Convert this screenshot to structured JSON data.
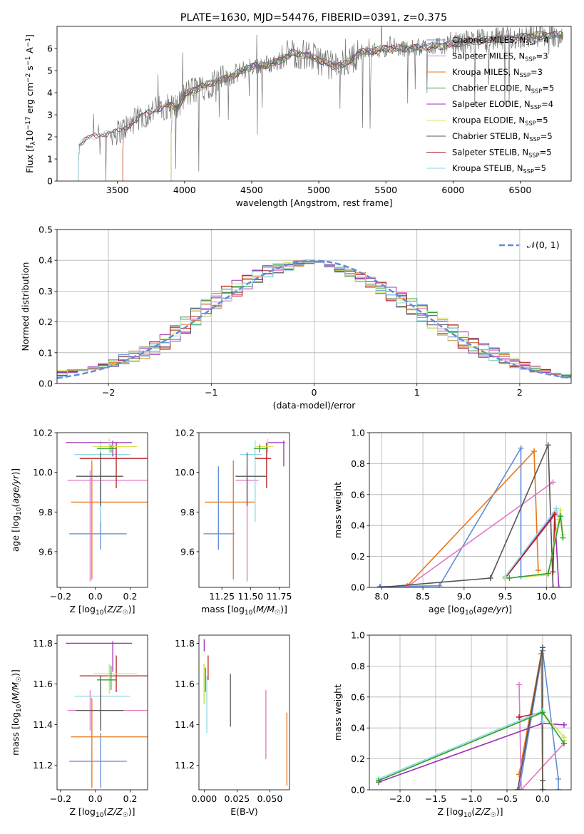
{
  "chart_data": [
    {
      "type": "line",
      "title": "PLATE=1630, MJD=54476, FIBERID=0391, z=0.375",
      "xlabel": "wavelength [Angstrom, rest frame]",
      "ylabel": "Flux [f_λ 10^-17 erg cm^-2 s^-1 A^-1]",
      "xlim": [
        3050,
        6880
      ],
      "ylim": [
        0,
        7
      ],
      "xticks": [
        "3500",
        "4000",
        "4500",
        "5000",
        "5500",
        "6000",
        "6500"
      ],
      "yticks": [
        "0",
        "1",
        "2",
        "3",
        "4",
        "5",
        "6"
      ],
      "legend_position": "upper right",
      "continuum": {
        "x": [
          3210,
          3300,
          3400,
          3500,
          3600,
          3700,
          3800,
          3900,
          3950,
          4000,
          4100,
          4200,
          4300,
          4400,
          4500,
          4600,
          4700,
          4800,
          4900,
          5000,
          5100,
          5200,
          5300,
          5400,
          5500,
          5600,
          5700,
          5800,
          5900,
          6000,
          6100,
          6200,
          6300,
          6400,
          6500,
          6600,
          6700,
          6800
        ],
        "y": [
          1.6,
          2.0,
          2.15,
          2.2,
          2.6,
          3.0,
          3.3,
          3.4,
          3.3,
          3.9,
          4.2,
          4.45,
          4.6,
          4.9,
          5.2,
          5.25,
          5.4,
          5.8,
          5.7,
          5.5,
          5.2,
          5.3,
          5.8,
          5.9,
          6.0,
          6.0,
          6.0,
          6.1,
          6.1,
          6.2,
          6.3,
          6.35,
          6.4,
          6.45,
          6.5,
          6.6,
          6.6,
          6.6
        ]
      },
      "series": [
        {
          "name": "Chabrier MILES, N_SSP=4",
          "color": "#5f8cd7",
          "x_start": 3540
        },
        {
          "name": "Salpeter MILES, N_SSP=3",
          "color": "#e377c2",
          "x_start": 3540
        },
        {
          "name": "Kroupa MILES, N_SSP=3",
          "color": "#e87518",
          "x_start": 3540
        },
        {
          "name": "Chabrier ELODIE, N_SSP=5",
          "color": "#2ca02c",
          "x_start": 3900
        },
        {
          "name": "Salpeter ELODIE, N_SSP=4",
          "color": "#9b30b5",
          "x_start": 3900
        },
        {
          "name": "Kroupa ELODIE, N_SSP=5",
          "color": "#d4e157",
          "x_start": 3900
        },
        {
          "name": "Chabrier STELIB, N_SSP=5",
          "color": "#555555",
          "x_start": 3210
        },
        {
          "name": "Salpeter STELIB, N_SSP=5",
          "color": "#b22222",
          "x_start": 3210
        },
        {
          "name": "Kroupa STELIB, N_SSP=5",
          "color": "#8fd8e8",
          "x_start": 3210
        }
      ]
    },
    {
      "type": "line",
      "xlabel": "(data-model)/error",
      "ylabel": "Normed distribution",
      "xlim": [
        -2.5,
        2.5
      ],
      "ylim": [
        0,
        0.5
      ],
      "xticks": [
        "−2",
        "−1",
        "0",
        "1",
        "2"
      ],
      "yticks": [
        "0.0",
        "0.1",
        "0.2",
        "0.3",
        "0.4",
        "0.5"
      ],
      "grid": true,
      "legend_position": "upper right",
      "reference_curve": {
        "name": "𝒩(0, 1)",
        "color": "#5f8cd7",
        "style": "dashed"
      },
      "bin_width": 0.1,
      "histogram_envelope": {
        "x": [
          -2.5,
          -2.0,
          -1.5,
          -1.0,
          -0.5,
          0.0,
          0.5,
          1.0,
          1.5,
          2.0,
          2.5
        ],
        "y": [
          0.03,
          0.06,
          0.12,
          0.26,
          0.36,
          0.4,
          0.34,
          0.24,
          0.13,
          0.06,
          0.02
        ]
      }
    },
    {
      "type": "scatter",
      "xlabel": "Z [log10(Z/Z☉)]",
      "ylabel": "age  [log10(age/yr)]",
      "xlim": [
        -0.22,
        0.3
      ],
      "ylim": [
        9.42,
        10.2
      ],
      "xticks": [
        "−0.2",
        "0.0",
        "0.2"
      ],
      "yticks": [
        "9.6",
        "9.8",
        "10.0",
        "10.2"
      ],
      "points": [
        {
          "color": "#5f8cd7",
          "x": 0.03,
          "xerr": [
            0.18,
            0.15
          ],
          "y": 9.69,
          "yerr": [
            0.08,
            0.32
          ]
        },
        {
          "color": "#e87518",
          "x": -0.02,
          "xerr": [
            0.12,
            0.33
          ],
          "y": 9.85,
          "yerr": [
            0.39,
            0.21
          ]
        },
        {
          "color": "#e377c2",
          "x": -0.03,
          "xerr": [
            0.13,
            0.33
          ],
          "y": 9.96,
          "yerr": [
            0.51,
            0.05
          ]
        },
        {
          "color": "#8fd8e8",
          "x": 0.03,
          "xerr": [
            0.15,
            0.17
          ],
          "y": 10.09,
          "yerr": [
            0.34,
            0.07
          ]
        },
        {
          "color": "#555555",
          "x": 0.03,
          "xerr": [
            0.14,
            0.13
          ],
          "y": 9.98,
          "yerr": [
            0.15,
            0.12
          ]
        },
        {
          "color": "#b22222",
          "x": 0.12,
          "xerr": [
            0.21,
            0.18
          ],
          "y": 10.07,
          "yerr": [
            0.15,
            0.08
          ]
        },
        {
          "color": "#9b30b5",
          "x": 0.1,
          "xerr": [
            0.27,
            0.11
          ],
          "y": 10.15,
          "yerr": [
            0.07,
            0.01
          ]
        },
        {
          "color": "#d4e157",
          "x": 0.08,
          "xerr": [
            0.09,
            0.16
          ],
          "y": 10.13,
          "yerr": [
            0.03,
            0.04
          ]
        },
        {
          "color": "#2ca02c",
          "x": 0.09,
          "xerr": [
            0.08,
            0.03
          ],
          "y": 10.12,
          "yerr": [
            0.02,
            0.02
          ]
        }
      ]
    },
    {
      "type": "scatter",
      "xlabel": "mass [log10(M/M☉)]",
      "xlim": [
        11.05,
        11.84
      ],
      "ylim": [
        9.42,
        10.2
      ],
      "xticks": [
        "11.25",
        "11.50",
        "11.75"
      ],
      "yticks": [
        "9.6",
        "9.8",
        "10.0",
        "10.2"
      ],
      "points": [
        {
          "color": "#5f8cd7",
          "x": 11.22,
          "xerr": [
            0.13,
            0.14
          ],
          "y": 9.69,
          "yerr": [
            0.08,
            0.34
          ]
        },
        {
          "color": "#e87518",
          "x": 11.35,
          "xerr": [
            0.25,
            0.19
          ],
          "y": 9.85,
          "yerr": [
            0.39,
            0.21
          ]
        },
        {
          "color": "#e377c2",
          "x": 11.47,
          "xerr": [
            0.1,
            0.1
          ],
          "y": 9.96,
          "yerr": [
            0.51,
            0.05
          ]
        },
        {
          "color": "#8fd8e8",
          "x": 11.54,
          "xerr": [
            0.13,
            0.06
          ],
          "y": 10.09,
          "yerr": [
            0.34,
            0.07
          ]
        },
        {
          "color": "#555555",
          "x": 11.47,
          "xerr": [
            0.1,
            0.17
          ],
          "y": 9.98,
          "yerr": [
            0.15,
            0.12
          ]
        },
        {
          "color": "#b22222",
          "x": 11.64,
          "xerr": [
            0.1,
            0.04
          ],
          "y": 10.07,
          "yerr": [
            0.15,
            0.08
          ]
        },
        {
          "color": "#9b30b5",
          "x": 11.79,
          "xerr": [
            0.14,
            0.01
          ],
          "y": 10.15,
          "yerr": [
            0.12,
            0.01
          ]
        },
        {
          "color": "#d4e157",
          "x": 11.65,
          "xerr": [
            0.1,
            0.05
          ],
          "y": 10.13,
          "yerr": [
            0.03,
            0.04
          ]
        },
        {
          "color": "#2ca02c",
          "x": 11.58,
          "xerr": [
            0.05,
            0.07
          ],
          "y": 10.12,
          "yerr": [
            0.02,
            0.02
          ]
        }
      ]
    },
    {
      "type": "line",
      "xlabel": "age  [log10(age/yr)]",
      "ylabel": "mass weight",
      "xlim": [
        7.85,
        10.3
      ],
      "ylim": [
        0,
        1
      ],
      "xticks": [
        "8.0",
        "8.5",
        "9.0",
        "9.5",
        "10.0"
      ],
      "yticks": [
        "0.0",
        "0.2",
        "0.4",
        "0.6",
        "0.8",
        "1.0"
      ],
      "grid": true,
      "series": [
        {
          "color": "#5f8cd7",
          "x": [
            7.98,
            8.7,
            9.69,
            9.69
          ],
          "y": [
            0.005,
            0.01,
            0.9,
            0.07
          ]
        },
        {
          "color": "#e87518",
          "x": [
            8.31,
            9.85,
            9.9
          ],
          "y": [
            0.01,
            0.88,
            0.11
          ]
        },
        {
          "color": "#e377c2",
          "x": [
            8.3,
            10.08
          ],
          "y": [
            0.0,
            0.68
          ]
        },
        {
          "color": "#555555",
          "x": [
            7.98,
            9.32,
            10.02,
            10.08
          ],
          "y": [
            0.0,
            0.06,
            0.92,
            0.0
          ]
        },
        {
          "color": "#9b30b5",
          "x": [
            9.5,
            10.1,
            10.15
          ],
          "y": [
            0.06,
            0.48,
            0.0
          ]
        },
        {
          "color": "#b22222",
          "x": [
            9.5,
            10.1,
            10.08
          ],
          "y": [
            0.06,
            0.47,
            0.1
          ]
        },
        {
          "color": "#8fd8e8",
          "x": [
            9.5,
            10.12,
            10.15
          ],
          "y": [
            0.07,
            0.51,
            0.44
          ]
        },
        {
          "color": "#d4e157",
          "x": [
            9.5,
            10.02,
            10.17,
            10.2
          ],
          "y": [
            0.06,
            0.08,
            0.5,
            0.34
          ]
        },
        {
          "color": "#2ca02c",
          "x": [
            9.55,
            10.02,
            10.17,
            10.2
          ],
          "y": [
            0.06,
            0.09,
            0.46,
            0.32
          ]
        }
      ]
    },
    {
      "type": "scatter",
      "xlabel": "Z [log10(Z/Z☉)]",
      "ylabel": "mass [log10(M/M☉)]",
      "xlim": [
        -0.22,
        0.3
      ],
      "ylim": [
        11.08,
        11.84
      ],
      "xticks": [
        "−0.2",
        "0.0",
        "0.2"
      ],
      "yticks": [
        "11.2",
        "11.4",
        "11.6",
        "11.8"
      ],
      "points": [
        {
          "color": "#5f8cd7",
          "x": 0.03,
          "xerr": [
            0.18,
            0.15
          ],
          "y": 11.22,
          "yerr": [
            0.13,
            0.14
          ]
        },
        {
          "color": "#e87518",
          "x": -0.02,
          "xerr": [
            0.12,
            0.33
          ],
          "y": 11.34,
          "yerr": [
            0.25,
            0.19
          ]
        },
        {
          "color": "#e377c2",
          "x": -0.03,
          "xerr": [
            0.13,
            0.33
          ],
          "y": 11.47,
          "yerr": [
            0.1,
            0.1
          ]
        },
        {
          "color": "#8fd8e8",
          "x": 0.03,
          "xerr": [
            0.15,
            0.17
          ],
          "y": 11.54,
          "yerr": [
            0.13,
            0.06
          ]
        },
        {
          "color": "#555555",
          "x": 0.03,
          "xerr": [
            0.14,
            0.13
          ],
          "y": 11.47,
          "yerr": [
            0.1,
            0.17
          ]
        },
        {
          "color": "#b22222",
          "x": 0.12,
          "xerr": [
            0.21,
            0.18
          ],
          "y": 11.64,
          "yerr": [
            0.08,
            0.1
          ]
        },
        {
          "color": "#9b30b5",
          "x": 0.1,
          "xerr": [
            0.27,
            0.11
          ],
          "y": 11.8,
          "yerr": [
            0.14,
            0.01
          ]
        },
        {
          "color": "#d4e157",
          "x": 0.08,
          "xerr": [
            0.09,
            0.16
          ],
          "y": 11.65,
          "yerr": [
            0.1,
            0.05
          ]
        },
        {
          "color": "#2ca02c",
          "x": 0.09,
          "xerr": [
            0.08,
            0.03
          ],
          "y": 11.62,
          "yerr": [
            0.05,
            0.07
          ]
        }
      ]
    },
    {
      "type": "scatter",
      "xlabel": "E(B-V)",
      "xlim": [
        -0.004,
        0.065
      ],
      "ylim": [
        11.08,
        11.84
      ],
      "xticks": [
        "0.000",
        "0.025",
        "0.050"
      ],
      "yticks": [
        "11.2",
        "11.4",
        "11.6",
        "11.8"
      ],
      "points": [
        {
          "color": "#5f8cd7",
          "x": 0.0,
          "y": 11.6,
          "yerr": [
            0.1,
            0.1
          ]
        },
        {
          "color": "#e87518",
          "x": 0.063,
          "y": 11.28,
          "yerr": [
            0.18,
            0.18
          ]
        },
        {
          "color": "#e377c2",
          "x": 0.047,
          "y": 11.4,
          "yerr": [
            0.17,
            0.17
          ]
        },
        {
          "color": "#555555",
          "x": 0.02,
          "y": 11.52,
          "yerr": [
            0.13,
            0.13
          ]
        },
        {
          "color": "#8fd8e8",
          "x": 0.002,
          "y": 11.5,
          "yerr": [
            0.14,
            0.14
          ]
        },
        {
          "color": "#b22222",
          "x": 0.003,
          "y": 11.68,
          "yerr": [
            0.06,
            0.06
          ]
        },
        {
          "color": "#9b30b5",
          "x": 0.0,
          "y": 11.79,
          "yerr": [
            0.03,
            0.03
          ]
        },
        {
          "color": "#d4e157",
          "x": 0.0,
          "y": 11.6,
          "yerr": [
            0.1,
            0.1
          ]
        },
        {
          "color": "#2ca02c",
          "x": 0.001,
          "y": 11.62,
          "yerr": [
            0.06,
            0.06
          ]
        }
      ]
    },
    {
      "type": "line",
      "xlabel": "Z [log10(Z/Z☉)]",
      "ylabel": "mass weight",
      "xlim": [
        -2.43,
        0.4
      ],
      "ylim": [
        0,
        1
      ],
      "xticks": [
        "−2.0",
        "−1.5",
        "−1.0",
        "−0.5",
        "0.0"
      ],
      "yticks": [
        "0.0",
        "0.2",
        "0.4",
        "0.6",
        "0.8",
        "1.0"
      ],
      "grid": true,
      "series": [
        {
          "color": "#5f8cd7",
          "x": [
            -0.33,
            0.0,
            0.22,
            0.22
          ],
          "y": [
            0.0,
            0.9,
            0.07,
            0.0
          ]
        },
        {
          "color": "#e87518",
          "x": [
            -0.33,
            -0.02,
            0.0
          ],
          "y": [
            0.1,
            0.88,
            0.0
          ]
        },
        {
          "color": "#e377c2",
          "x": [
            -0.33,
            -0.3,
            0.3,
            0.3
          ],
          "y": [
            0.68,
            0.0,
            0.3,
            0.3
          ]
        },
        {
          "color": "#555555",
          "x": [
            -0.35,
            0.0,
            0.0,
            0.0
          ],
          "y": [
            0.0,
            0.92,
            0.06,
            0.0
          ]
        },
        {
          "color": "#9b30b5",
          "x": [
            -2.3,
            0.0,
            0.3
          ],
          "y": [
            0.05,
            0.43,
            0.42
          ]
        },
        {
          "color": "#b22222",
          "x": [
            -0.33,
            0.0
          ],
          "y": [
            0.47,
            0.5
          ]
        },
        {
          "color": "#8fd8e8",
          "x": [
            -2.3,
            0.0,
            0.0
          ],
          "y": [
            0.07,
            0.51,
            0.44
          ]
        },
        {
          "color": "#d4e157",
          "x": [
            -2.3,
            0.0,
            0.3,
            0.3
          ],
          "y": [
            0.06,
            0.5,
            0.34,
            0.32
          ]
        },
        {
          "color": "#2ca02c",
          "x": [
            -2.3,
            0.0,
            0.3
          ],
          "y": [
            0.06,
            0.5,
            0.3
          ]
        }
      ]
    }
  ]
}
